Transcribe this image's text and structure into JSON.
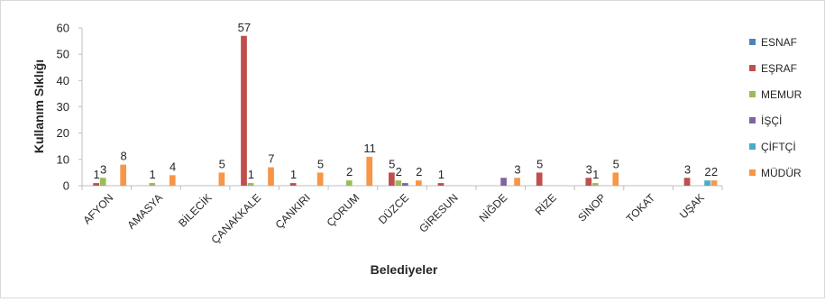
{
  "chart_data": {
    "type": "bar",
    "title": "",
    "xlabel": "Belediyeler",
    "ylabel": "Kullanım Sıklığı",
    "ylim": [
      0,
      60
    ],
    "yticks": [
      0,
      10,
      20,
      30,
      40,
      50,
      60
    ],
    "grid": false,
    "legend_position": "right",
    "categories": [
      "AFYON",
      "AMASYA",
      "BİLECİK",
      "ÇANAKKALE",
      "ÇANKIRI",
      "ÇORUM",
      "DÜZCE",
      "GİRESUN",
      "NİĞDE",
      "RİZE",
      "SİNOP",
      "TOKAT",
      "UŞAK"
    ],
    "series": [
      {
        "name": "ESNAF",
        "color": "#4f81bd",
        "values": [
          0,
          0,
          0,
          0,
          0,
          0,
          0,
          0,
          0,
          0,
          0,
          0,
          0
        ]
      },
      {
        "name": "EŞRAF",
        "color": "#c0504d",
        "values": [
          1,
          0,
          0,
          57,
          1,
          0,
          5,
          1,
          0,
          5,
          3,
          0,
          3
        ]
      },
      {
        "name": "MEMUR",
        "color": "#9bbb59",
        "values": [
          3,
          1,
          0,
          1,
          0,
          2,
          2,
          0,
          0,
          0,
          1,
          0,
          0
        ]
      },
      {
        "name": "İŞÇİ",
        "color": "#8064a2",
        "values": [
          0,
          0,
          0,
          0,
          0,
          0,
          1,
          0,
          3,
          0,
          0,
          0,
          0
        ]
      },
      {
        "name": "ÇİFTÇİ",
        "color": "#4bacc6",
        "values": [
          0,
          0,
          0,
          0,
          0,
          0,
          0,
          0,
          0,
          0,
          0,
          0,
          2
        ]
      },
      {
        "name": "MÜDÜR",
        "color": "#f79646",
        "values": [
          8,
          4,
          5,
          7,
          5,
          11,
          2,
          0,
          3,
          0,
          5,
          0,
          2
        ]
      }
    ],
    "data_labels": [
      {
        "category": "AFYON",
        "series": "EŞRAF",
        "text": "1"
      },
      {
        "category": "AFYON",
        "series": "MEMUR",
        "text": "3"
      },
      {
        "category": "AFYON",
        "series": "MÜDÜR",
        "text": "8"
      },
      {
        "category": "AMASYA",
        "series": "MEMUR",
        "text": "1"
      },
      {
        "category": "AMASYA",
        "series": "MÜDÜR",
        "text": "4"
      },
      {
        "category": "BİLECİK",
        "series": "MÜDÜR",
        "text": "5"
      },
      {
        "category": "ÇANAKKALE",
        "series": "EŞRAF",
        "text": "57"
      },
      {
        "category": "ÇANAKKALE",
        "series": "MEMUR",
        "text": "1"
      },
      {
        "category": "ÇANAKKALE",
        "series": "MÜDÜR",
        "text": "7"
      },
      {
        "category": "ÇANKIRI",
        "series": "EŞRAF",
        "text": "1"
      },
      {
        "category": "ÇANKIRI",
        "series": "MÜDÜR",
        "text": "5"
      },
      {
        "category": "ÇORUM",
        "series": "MEMUR",
        "text": "2"
      },
      {
        "category": "ÇORUM",
        "series": "MÜDÜR",
        "text": "11"
      },
      {
        "category": "DÜZCE",
        "series": "EŞRAF",
        "text": "5"
      },
      {
        "category": "DÜZCE",
        "series": "MEMUR",
        "text": "2"
      },
      {
        "category": "DÜZCE",
        "series": "MÜDÜR",
        "text": "2"
      },
      {
        "category": "GİRESUN",
        "series": "EŞRAF",
        "text": "1"
      },
      {
        "category": "NİĞDE",
        "series": "MÜDÜR",
        "text": "3"
      },
      {
        "category": "RİZE",
        "series": "EŞRAF",
        "text": "5"
      },
      {
        "category": "SİNOP",
        "series": "EŞRAF",
        "text": "3"
      },
      {
        "category": "SİNOP",
        "series": "MEMUR",
        "text": "1"
      },
      {
        "category": "SİNOP",
        "series": "MÜDÜR",
        "text": "5"
      },
      {
        "category": "UŞAK",
        "series": "EŞRAF",
        "text": "3"
      },
      {
        "category": "UŞAK",
        "series": "ÇİFTÇİ",
        "text": "2"
      },
      {
        "category": "UŞAK",
        "series": "MÜDÜR",
        "text": "2"
      }
    ]
  }
}
